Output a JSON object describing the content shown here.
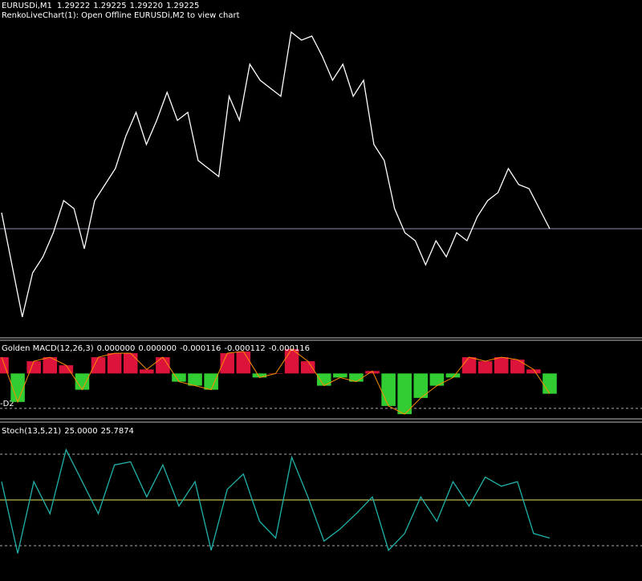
{
  "header": {
    "symbol": "EURUSDi,M1",
    "ohlc": [
      {
        "value": 1.29222,
        "label": "1.29222"
      },
      {
        "value": 1.29225,
        "label": "1.29225"
      },
      {
        "value": 1.2922,
        "label": "1.29220"
      },
      {
        "value": 1.29225,
        "label": "1.29225"
      }
    ],
    "notice": "RenkoLiveChart(1): Open Offline EURUSDi,M2 to view chart"
  },
  "chart_data": [
    {
      "type": "line",
      "color": "#ffffff",
      "ylim": [
        1.2909,
        1.2951
      ],
      "values": [
        1.29245,
        1.2918,
        1.29115,
        1.2917,
        1.2919,
        1.2922,
        1.2926,
        1.2925,
        1.292,
        1.2926,
        1.2928,
        1.293,
        1.2934,
        1.2937,
        1.2933,
        1.2936,
        1.29395,
        1.2936,
        1.2937,
        1.2931,
        1.293,
        1.2929,
        1.2939,
        1.2936,
        1.2943,
        1.2941,
        1.294,
        1.2939,
        1.2947,
        1.2946,
        1.29465,
        1.2944,
        1.2941,
        1.2943,
        1.2939,
        1.2941,
        1.2933,
        1.2931,
        1.2925,
        1.2922,
        1.2921,
        1.2918,
        1.2921,
        1.2919,
        1.2922,
        1.2921,
        1.2924,
        1.2926,
        1.2927,
        1.293,
        1.2928,
        1.29275,
        1.2925,
        1.29225
      ]
    },
    {
      "type": "bar",
      "title": "Golden MACD(12,26,3)",
      "legend_values": [
        {
          "value": 0,
          "label": "0.000000"
        },
        {
          "value": 0,
          "label": "0.000000"
        },
        {
          "value": -0.000116,
          "label": "-0.000116"
        },
        {
          "value": -0.000112,
          "label": "-0.000112"
        },
        {
          "value": -0.000116,
          "label": "-0.000116"
        }
      ],
      "up_color": "#dc143c",
      "down_color": "#32cd32",
      "line_color": "#ff8c00",
      "ylim": [
        -0.00026,
        0.00019
      ],
      "levels": [
        -0.0002
      ],
      "level_label": "-D2",
      "values": [
        9.3e-05,
        -0.000163,
        7e-05,
        9.3e-05,
        4.7e-05,
        -9.3e-05,
        9.3e-05,
        0.000116,
        0.000116,
        2.3e-05,
        9.3e-05,
        -4.7e-05,
        -7e-05,
        -9.3e-05,
        0.000116,
        0.000126,
        -2.3e-05,
        0,
        0.00014,
        7e-05,
        -7e-05,
        -2.3e-05,
        -4.7e-05,
        1.4e-05,
        -0.000186,
        -0.000233,
        -0.00014,
        -7e-05,
        -2.3e-05,
        9.3e-05,
        7e-05,
        9.3e-05,
        7.9e-05,
        2.3e-05,
        -0.000116
      ]
    },
    {
      "type": "line",
      "title": "Stoch(13,5,21)",
      "legend_values": [
        {
          "value": 25,
          "label": "25.0000"
        },
        {
          "value": 25.7874,
          "label": "25.7874"
        }
      ],
      "color": "#20b2aa",
      "ylim": [
        0,
        100
      ],
      "levels": [
        20,
        80
      ],
      "midline": 50,
      "midline_color": "#e6e65a",
      "values": [
        62,
        15,
        62,
        41,
        83,
        62,
        41,
        73,
        75,
        52,
        73,
        46,
        62,
        17,
        57,
        67,
        36,
        25,
        78,
        52,
        23,
        31,
        41,
        52,
        17,
        28,
        52,
        36,
        62,
        46,
        65,
        59,
        62,
        28,
        25
      ]
    }
  ]
}
